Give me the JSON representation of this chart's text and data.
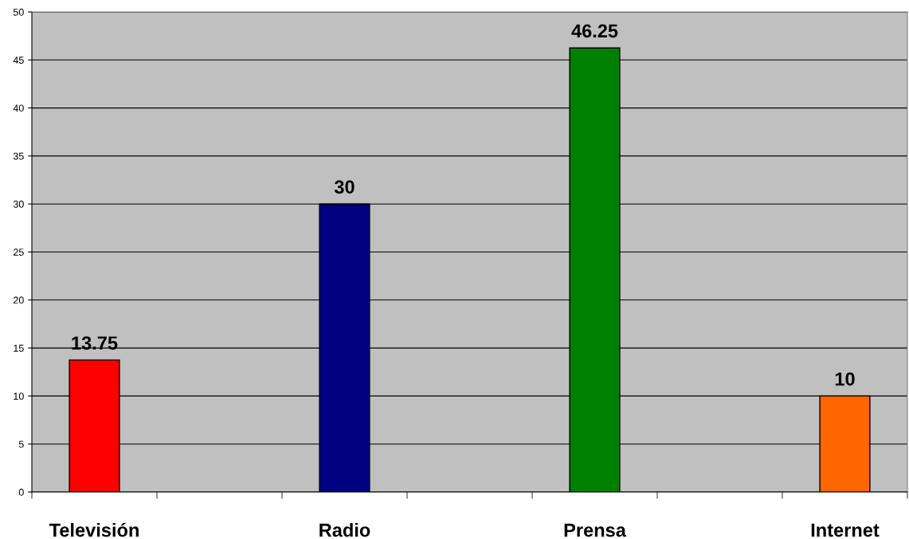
{
  "chart_data": {
    "type": "bar",
    "categories": [
      "Televisión",
      null,
      "Radio",
      null,
      "Prensa",
      null,
      "Internet"
    ],
    "values": [
      13.75,
      null,
      30,
      null,
      46.25,
      null,
      10
    ],
    "colors": [
      "#ff0000",
      null,
      "#000080",
      null,
      "#008000",
      null,
      "#ff6600"
    ],
    "ylim": [
      0,
      50
    ],
    "yticks": [
      0,
      5,
      10,
      15,
      20,
      25,
      30,
      35,
      40,
      45,
      50
    ],
    "grid": "y",
    "data_labels": true,
    "legend": false
  }
}
